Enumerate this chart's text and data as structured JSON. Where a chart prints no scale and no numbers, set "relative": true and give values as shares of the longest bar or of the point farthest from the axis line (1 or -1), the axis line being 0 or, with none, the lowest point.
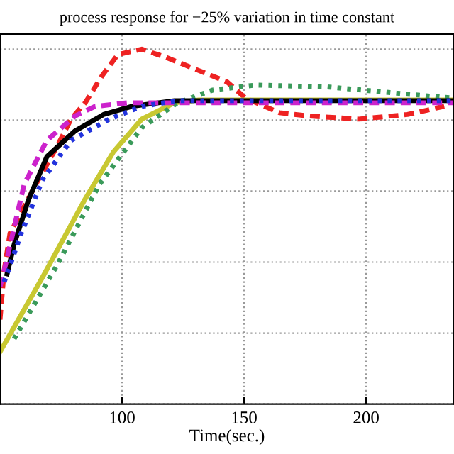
{
  "chart_data": {
    "type": "line",
    "title": "process response for −25% variation in time constant",
    "xlabel": "Time(sec.)",
    "relative": true,
    "xlim": [
      50,
      236
    ],
    "xticks": [
      100,
      150,
      200
    ],
    "grid": true,
    "legend": false,
    "series": [
      {
        "color": "#ee2222",
        "line_style": "dashed",
        "x": [
          50,
          51.7,
          54.1,
          65.7,
          73.3,
          79.1,
          84.9,
          91.9,
          98.3,
          108.1,
          118,
          131.4,
          143,
          150.6,
          164.5,
          176.2,
          197.1,
          216.9,
          232
        ],
        "values": [
          0.238,
          0.376,
          0.481,
          0.632,
          0.725,
          0.803,
          0.849,
          0.926,
          0.985,
          1,
          0.977,
          0.94,
          0.908,
          0.862,
          0.821,
          0.812,
          0.803,
          0.816,
          0.839
        ]
      },
      {
        "color": "#c8c832",
        "line_style": "solid",
        "x": [
          50,
          67.4,
          84.9,
          96.5,
          108.1,
          121.5,
          131.4,
          236
        ],
        "values": [
          0.147,
          0.357,
          0.578,
          0.711,
          0.803,
          0.849,
          0.857,
          0.857
        ]
      },
      {
        "color": "#3a9a5a",
        "line_style": "dotted",
        "x": [
          55.8,
          73.3,
          90.7,
          108.1,
          122.7,
          137.2,
          154.7,
          183.7,
          212.8,
          236
        ],
        "values": [
          0.184,
          0.39,
          0.619,
          0.779,
          0.849,
          0.885,
          0.899,
          0.894,
          0.876,
          0.862
        ]
      },
      {
        "color": "#000000",
        "line_style": "solid",
        "x": [
          52.9,
          55.8,
          61.6,
          69.2,
          80.8,
          92.4,
          104.1,
          121.5,
          236
        ],
        "values": [
          0.367,
          0.45,
          0.574,
          0.697,
          0.77,
          0.816,
          0.839,
          0.855,
          0.855
        ]
      },
      {
        "color": "#cc22cc",
        "line_style": "dashed",
        "x": [
          50,
          51.7,
          59.9,
          69.2,
          80.8,
          89,
          102.3,
          236
        ],
        "values": [
          0.33,
          0.376,
          0.619,
          0.743,
          0.812,
          0.839,
          0.849,
          0.849
        ]
      },
      {
        "color": "#2233dd",
        "line_style": "dotted",
        "x": [
          51.7,
          58.7,
          67.4,
          79.1,
          94.8,
          108.1,
          122.7,
          236
        ],
        "values": [
          0.344,
          0.481,
          0.632,
          0.743,
          0.803,
          0.839,
          0.855,
          0.855
        ]
      }
    ]
  }
}
